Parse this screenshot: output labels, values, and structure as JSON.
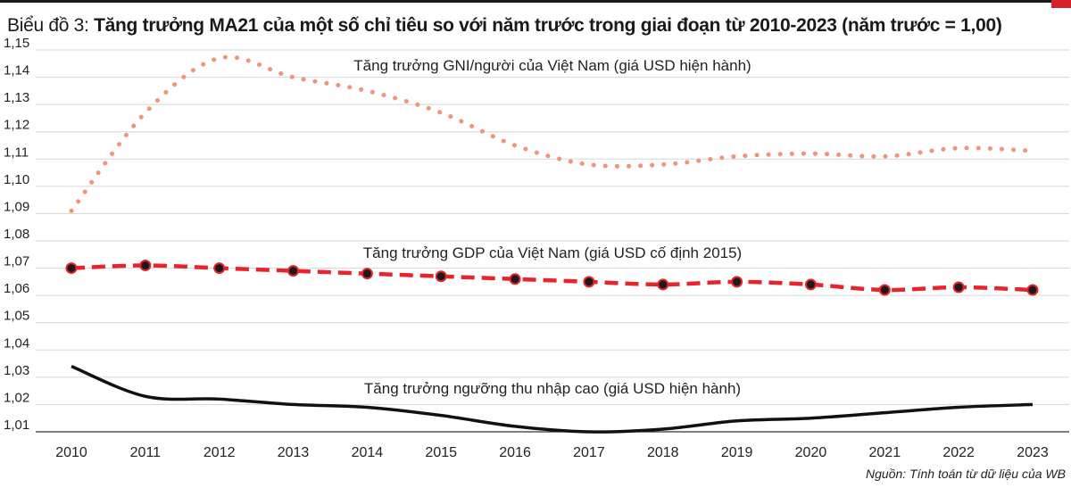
{
  "chart_data": {
    "type": "line",
    "title_prefix": "Biểu đồ 3:",
    "title": "Tăng trưởng MA21 của một số chỉ tiêu so với năm trước trong giai đoạn từ 2010-2023 (năm trước = 1,00)",
    "source": "Nguồn: Tính toán từ dữ liệu của WB",
    "x": [
      2010,
      2011,
      2012,
      2013,
      2014,
      2015,
      2016,
      2017,
      2018,
      2019,
      2020,
      2021,
      2022,
      2023
    ],
    "x_tick_labels": [
      "2010",
      "2011",
      "2012",
      "2013",
      "2014",
      "2015",
      "2016",
      "2017",
      "2018",
      "2019",
      "2020",
      "2021",
      "2022",
      "2023"
    ],
    "ylim": [
      1.01,
      1.15
    ],
    "y_ticks": [
      1.01,
      1.02,
      1.03,
      1.04,
      1.05,
      1.06,
      1.07,
      1.08,
      1.09,
      1.1,
      1.11,
      1.12,
      1.13,
      1.14,
      1.15
    ],
    "y_tick_labels": [
      "1,01",
      "1,02",
      "1,03",
      "1,04",
      "1,05",
      "1,06",
      "1,07",
      "1,08",
      "1,09",
      "1,10",
      "1,11",
      "1,12",
      "1,13",
      "1,14",
      "1,15"
    ],
    "series": [
      {
        "name": "Tăng trưởng GNI/người của Việt Nam (giá USD hiện hành)",
        "style": "dotted",
        "color": "#f0957a",
        "values": [
          1.091,
          1.127,
          1.147,
          1.14,
          1.135,
          1.127,
          1.115,
          1.108,
          1.108,
          1.111,
          1.112,
          1.111,
          1.114,
          1.113
        ]
      },
      {
        "name": "Tăng trưởng GDP của Việt Nam (giá USD cố định 2015)",
        "style": "dashed-markers",
        "color": "#e8232a",
        "marker_color": "#1a1a1a",
        "values": [
          1.07,
          1.071,
          1.07,
          1.069,
          1.068,
          1.067,
          1.066,
          1.065,
          1.064,
          1.065,
          1.064,
          1.062,
          1.063,
          1.062
        ]
      },
      {
        "name": "Tăng trưởng ngưỡng thu nhập cao (giá USD hiện hành)",
        "style": "solid",
        "color": "#111111",
        "values": [
          1.034,
          1.023,
          1.022,
          1.02,
          1.019,
          1.016,
          1.012,
          1.01,
          1.011,
          1.014,
          1.015,
          1.017,
          1.019,
          1.02
        ]
      }
    ],
    "xlabel": "",
    "ylabel": ""
  }
}
